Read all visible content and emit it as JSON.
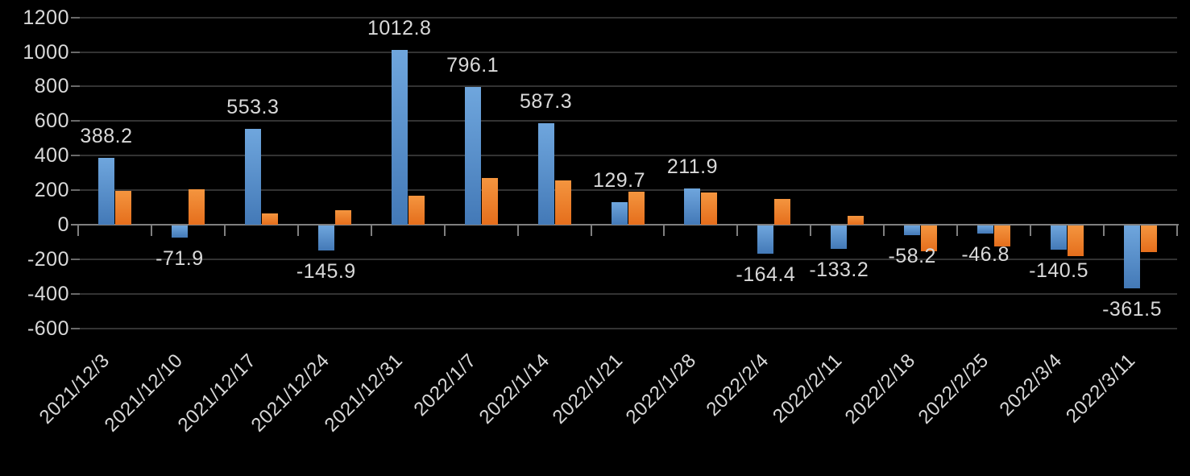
{
  "chart_data": {
    "type": "bar",
    "title": "",
    "xlabel": "",
    "ylabel": "",
    "legend": "none",
    "grid": true,
    "background_color": "#000000",
    "text_color": "#D9D9D9",
    "gridline_color": "#333333",
    "axis_color": "#7F7F7F",
    "categories": [
      "2021/12/3",
      "2021/12/10",
      "2021/12/17",
      "2021/12/24",
      "2021/12/31",
      "2022/1/7",
      "2022/1/14",
      "2022/1/21",
      "2022/1/28",
      "2022/2/4",
      "2022/2/11",
      "2022/2/18",
      "2022/2/25",
      "2022/3/4",
      "2022/3/11"
    ],
    "series": [
      {
        "name": "blue-series",
        "color_top": "#6FA6DD",
        "color_bottom": "#4379B7",
        "show_labels": true,
        "values": [
          388.2,
          -71.9,
          553.3,
          -145.9,
          1012.8,
          796.1,
          587.3,
          129.7,
          211.9,
          -164.4,
          -133.2,
          -58.2,
          -46.8,
          -140.5,
          -361.5
        ],
        "labels": [
          "388.2",
          "-71.9",
          "553.3",
          "-145.9",
          "1012.8",
          "796.1",
          "587.3",
          "129.7",
          "211.9",
          "-164.4",
          "-133.2",
          "-58.2",
          "-46.8",
          "-140.5",
          "-361.5"
        ]
      },
      {
        "name": "orange-series",
        "color_top": "#F4953F",
        "color_bottom": "#E56E1C",
        "show_labels": false,
        "values": [
          195,
          205,
          65,
          85,
          170,
          270,
          255,
          190,
          185,
          150,
          50,
          -150,
          -120,
          -175,
          -155
        ]
      }
    ],
    "y_axis": {
      "min": -600,
      "max": 1200,
      "step": 200,
      "tick_labels": [
        "1200",
        "1000",
        "800",
        "600",
        "400",
        "200",
        "0",
        "-200",
        "-400",
        "-600"
      ]
    }
  }
}
